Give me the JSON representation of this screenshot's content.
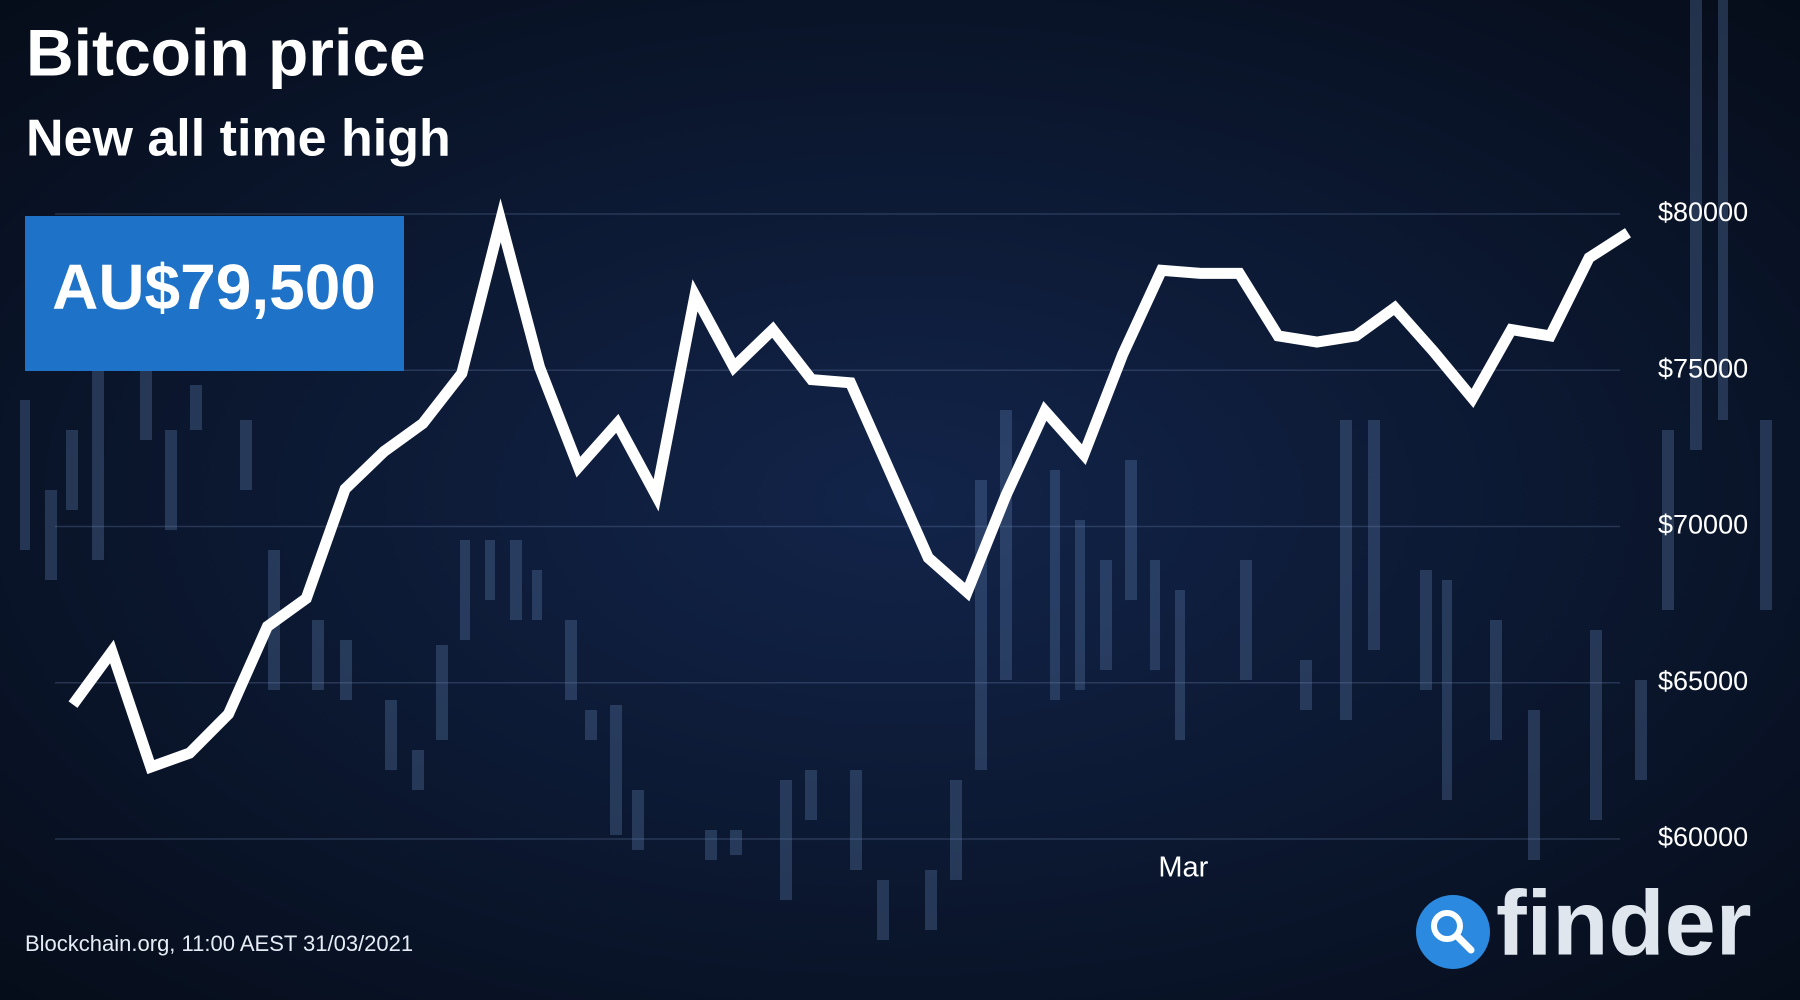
{
  "chart_data": {
    "type": "line",
    "title": "Bitcoin price",
    "subtitle": "New all time high",
    "annotation": "AU$79,500",
    "source": "Blockchain.org, 11:00 AEST 31/03/2021",
    "brand": "finder",
    "categories": [
      null,
      null,
      null,
      null,
      null,
      null,
      null,
      null,
      null,
      null,
      null,
      null,
      null,
      null,
      null,
      null,
      null,
      null,
      null,
      null,
      null,
      null,
      null,
      null,
      null,
      null,
      null,
      null,
      null,
      "Mar",
      null,
      null,
      null,
      null,
      null,
      null,
      null,
      null,
      null,
      null,
      null
    ],
    "series": [
      {
        "name": "Bitcoin price",
        "color": "#ffffff",
        "values": [
          64300,
          66000,
          62300,
          62750,
          64000,
          66800,
          67700,
          71200,
          72400,
          73300,
          74900,
          79800,
          75100,
          71900,
          73300,
          71000,
          77400,
          75100,
          76300,
          74700,
          74600,
          71800,
          69000,
          67900,
          71000,
          73700,
          72300,
          75500,
          78200,
          78100,
          78100,
          76100,
          75900,
          76100,
          77000,
          75600,
          74100,
          76300,
          76100,
          78600,
          79400
        ]
      }
    ],
    "ylim": [
      60000,
      80000
    ],
    "yticks": [
      {
        "value": 60000,
        "label": "$60000"
      },
      {
        "value": 65000,
        "label": "$65000"
      },
      {
        "value": 70000,
        "label": "$70000"
      },
      {
        "value": 75000,
        "label": "$75000"
      },
      {
        "value": 80000,
        "label": "$80000"
      }
    ],
    "grid": true
  }
}
